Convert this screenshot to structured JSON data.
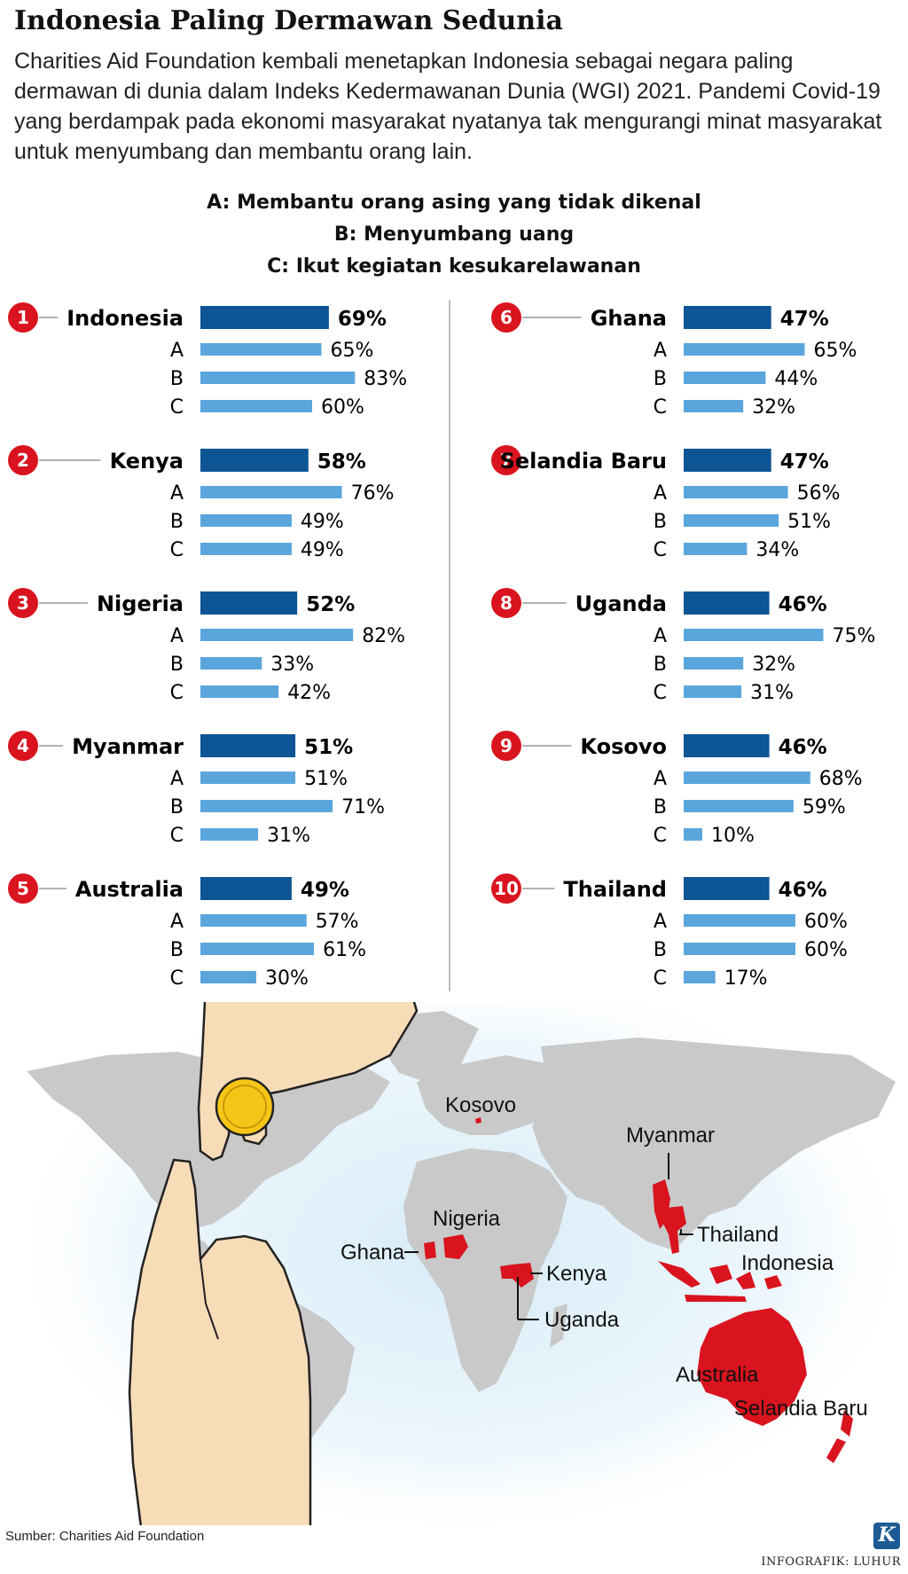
{
  "title": "Indonesia Paling Dermawan Sedunia",
  "intro": "Charities Aid Foundation kembali menetapkan Indonesia sebagai negara paling dermawan di dunia dalam Indeks Kedermawanan Dunia (WGI) 2021. Pandemi Covid-19 yang berdampak pada ekonomi masyarakat nyatanya tak mengurangi minat masyarakat untuk menyumbang dan membantu orang lain.",
  "legend": [
    "A: Membantu orang asing yang tidak dikenal",
    "B: Menyumbang uang",
    "C: Ikut kegiatan kesukarelawanan"
  ],
  "colors": {
    "rank_badge": "#d9141e",
    "main_bar": "#0d5594",
    "sub_bar": "#5aa6dc",
    "highlight_country": "#d9141e",
    "land": "#c9c9c9",
    "ocean_glow": "#d7ecf8",
    "coin": "#f5c518",
    "skin": "#f7dcb8"
  },
  "chart_data": {
    "type": "bar",
    "series_labels": [
      "A",
      "B",
      "C"
    ],
    "unit": "%",
    "countries": [
      {
        "rank": "1",
        "name": "Indonesia",
        "overall": 69,
        "overall_label": "69%",
        "values": [
          65,
          83,
          60
        ],
        "value_labels": [
          "65%",
          "83%",
          "60%"
        ]
      },
      {
        "rank": "2",
        "name": "Kenya",
        "overall": 58,
        "overall_label": "58%",
        "values": [
          76,
          49,
          49
        ],
        "value_labels": [
          "76%",
          "49%",
          "49%"
        ]
      },
      {
        "rank": "3",
        "name": "Nigeria",
        "overall": 52,
        "overall_label": "52%",
        "values": [
          82,
          33,
          42
        ],
        "value_labels": [
          "82%",
          "33%",
          "42%"
        ]
      },
      {
        "rank": "4",
        "name": "Myanmar",
        "overall": 51,
        "overall_label": "51%",
        "values": [
          51,
          71,
          31
        ],
        "value_labels": [
          "51%",
          "71%",
          "31%"
        ]
      },
      {
        "rank": "5",
        "name": "Australia",
        "overall": 49,
        "overall_label": "49%",
        "values": [
          57,
          61,
          30
        ],
        "value_labels": [
          "57%",
          "61%",
          "30%"
        ]
      },
      {
        "rank": "6",
        "name": "Ghana",
        "overall": 47,
        "overall_label": "47%",
        "values": [
          65,
          44,
          32
        ],
        "value_labels": [
          "65%",
          "44%",
          "32%"
        ]
      },
      {
        "rank": "7",
        "name": "Selandia Baru",
        "overall": 47,
        "overall_label": "47%",
        "values": [
          56,
          51,
          34
        ],
        "value_labels": [
          "56%",
          "51%",
          "34%"
        ]
      },
      {
        "rank": "8",
        "name": "Uganda",
        "overall": 46,
        "overall_label": "46%",
        "values": [
          75,
          32,
          31
        ],
        "value_labels": [
          "75%",
          "32%",
          "31%"
        ]
      },
      {
        "rank": "9",
        "name": "Kosovo",
        "overall": 46,
        "overall_label": "46%",
        "values": [
          68,
          59,
          10
        ],
        "value_labels": [
          "68%",
          "59%",
          "10%"
        ]
      },
      {
        "rank": "10",
        "name": "Thailand",
        "overall": 46,
        "overall_label": "46%",
        "values": [
          60,
          60,
          17
        ],
        "value_labels": [
          "60%",
          "60%",
          "17%"
        ]
      }
    ]
  },
  "map": {
    "labels": [
      "Kosovo",
      "Myanmar",
      "Thailand",
      "Nigeria",
      "Ghana",
      "Kenya",
      "Uganda",
      "Indonesia",
      "Australia",
      "Selandia Baru"
    ]
  },
  "source": "Sumber: Charities Aid Foundation",
  "credit": "INFOGRAFIK: LUHUR",
  "logo_letter": "K"
}
